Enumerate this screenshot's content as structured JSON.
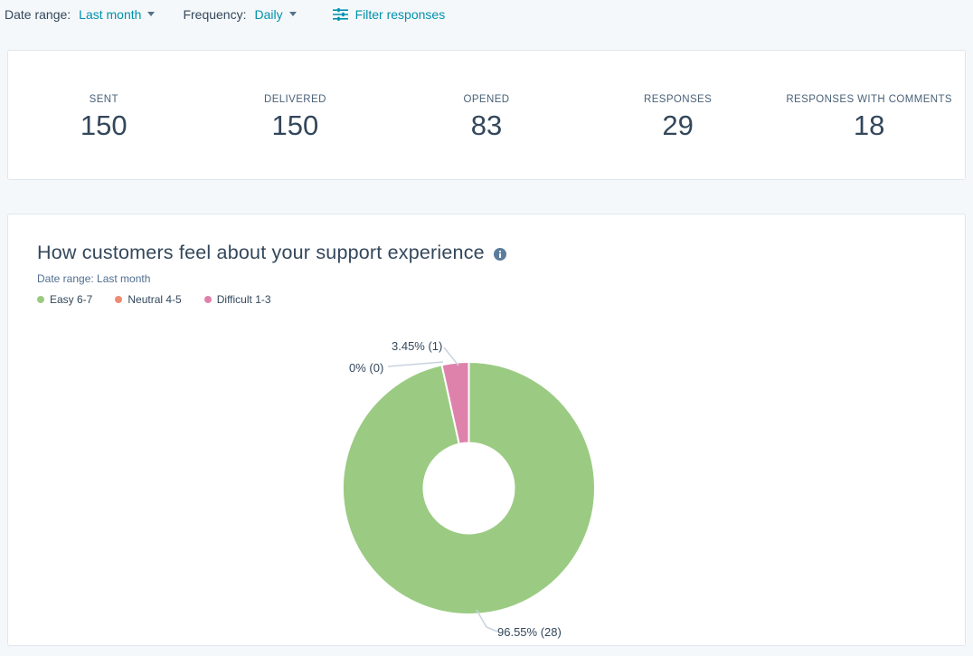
{
  "topbar": {
    "date_range_label": "Date range:",
    "date_range_value": "Last month",
    "frequency_label": "Frequency:",
    "frequency_value": "Daily",
    "filter_button": "Filter responses"
  },
  "stats": {
    "items": [
      {
        "label": "SENT",
        "value": "150"
      },
      {
        "label": "DELIVERED",
        "value": "150"
      },
      {
        "label": "OPENED",
        "value": "83"
      },
      {
        "label": "RESPONSES",
        "value": "29"
      },
      {
        "label": "RESPONSES WITH COMMENTS",
        "value": "18"
      }
    ]
  },
  "chart_data": {
    "type": "pie",
    "donut": true,
    "title": "How customers feel about your support experience",
    "subtitle": "Date range: Last month",
    "legend_position": "top-left",
    "slices": [
      {
        "name": "Easy 6-7",
        "count": 28,
        "pct": 96.55,
        "callout": "96.55% (28)",
        "color": "#9bcb83"
      },
      {
        "name": "Neutral 4-5",
        "count": 0,
        "pct": 0,
        "callout": "0% (0)",
        "color": "#ee8b73"
      },
      {
        "name": "Difficult 1-3",
        "count": 1,
        "pct": 3.45,
        "callout": "3.45% (1)",
        "color": "#de82ac"
      }
    ]
  },
  "colors": {
    "accent_teal": "#0091ae",
    "text_dark": "#33475b",
    "text_muted": "#516f90",
    "leader_line": "#c8d3e0"
  }
}
